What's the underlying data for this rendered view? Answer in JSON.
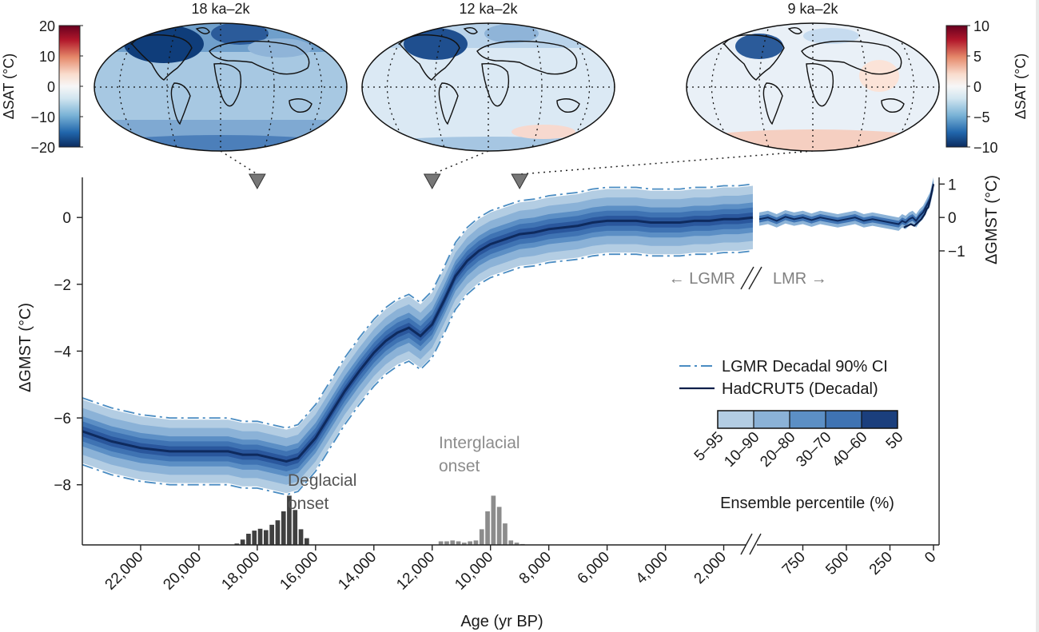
{
  "colors": {
    "band_5_95": "#b3cde3",
    "band_10_90": "#8bb2d7",
    "band_20_80": "#5c8fc5",
    "band_30_70": "#3f73b3",
    "band_40_60": "#2a579d",
    "median": "#0e2a5e",
    "ci_line": "#4a8cc2",
    "hadcrut": "#0b1f4a",
    "deglacial_bars": "#404040",
    "interglacial_bars": "#8c8c8c",
    "triangle": "#777777",
    "label_gray": "#808080"
  },
  "maps": [
    {
      "title": "18 ka–2k",
      "anomaly": "strong-cooling"
    },
    {
      "title": "12 ka–2k",
      "anomaly": "moderate-cooling"
    },
    {
      "title": "9 ka–2k",
      "anomaly": "near-present"
    }
  ],
  "colorbars": {
    "left": {
      "label": "ΔSAT (°C)",
      "ticks": [
        "20",
        "10",
        "0",
        "−10",
        "−20"
      ]
    },
    "right": {
      "label": "ΔSAT (°C)",
      "ticks": [
        "10",
        "5",
        "0",
        "−5",
        "−10"
      ]
    }
  },
  "chart_data": {
    "type": "line",
    "title": "",
    "xlabel": "Age (yr BP)",
    "ylabel": "ΔGMST (°C)",
    "ylabel_right": "ΔGMST (°C)",
    "xlim_lgmr": [
      24000,
      1000
    ],
    "xlim_lmr": [
      1000,
      0
    ],
    "ylim": [
      -9.8,
      1.2
    ],
    "lgmr_x_ticks": [
      "22,000",
      "20,000",
      "18,000",
      "16,000",
      "14,000",
      "12,000",
      "10,000",
      "8,000",
      "6,000",
      "4,000",
      "2,000"
    ],
    "lgmr_x_tick_values": [
      22000,
      20000,
      18000,
      16000,
      14000,
      12000,
      10000,
      8000,
      6000,
      4000,
      2000
    ],
    "lmr_x_ticks": [
      "750",
      "500",
      "250",
      "0"
    ],
    "lmr_x_tick_values": [
      750,
      500,
      250,
      0
    ],
    "y_ticks_left": [
      "0",
      "−2",
      "−4",
      "−6",
      "−8"
    ],
    "y_tick_values_left": [
      0,
      -2,
      -4,
      -6,
      -8
    ],
    "y_ticks_right": [
      "1",
      "0",
      "−1"
    ],
    "y_tick_values_right": [
      1,
      0,
      -1
    ],
    "lgmr_median": {
      "x": [
        24000,
        23000,
        22000,
        21000,
        20000,
        19000,
        18500,
        18000,
        17500,
        17000,
        16600,
        16000,
        15500,
        15000,
        14500,
        14000,
        13600,
        13200,
        12800,
        12400,
        12000,
        11600,
        11200,
        10800,
        10400,
        10000,
        9500,
        9000,
        8500,
        8000,
        7500,
        7000,
        6500,
        6000,
        5500,
        5000,
        4500,
        4000,
        3500,
        3000,
        2500,
        2000,
        1500,
        1000
      ],
      "y": [
        -6.4,
        -6.7,
        -6.9,
        -7.0,
        -7.0,
        -7.0,
        -7.1,
        -7.1,
        -7.2,
        -7.3,
        -7.2,
        -6.6,
        -5.9,
        -5.2,
        -4.6,
        -4.05,
        -3.7,
        -3.45,
        -3.3,
        -3.55,
        -3.2,
        -2.5,
        -1.75,
        -1.3,
        -1.0,
        -0.8,
        -0.65,
        -0.5,
        -0.45,
        -0.35,
        -0.3,
        -0.25,
        -0.15,
        -0.1,
        -0.1,
        -0.1,
        -0.15,
        -0.15,
        -0.15,
        -0.1,
        -0.1,
        -0.05,
        -0.05,
        0.0
      ]
    },
    "band_offsets": {
      "5-95": 0.95,
      "10-90": 0.7,
      "20-80": 0.45,
      "30-70": 0.3,
      "40-60": 0.15
    },
    "ci90_offset": 0.95,
    "lmr_median": {
      "x": [
        1000,
        950,
        900,
        850,
        800,
        750,
        700,
        650,
        600,
        550,
        500,
        450,
        400,
        350,
        300,
        250,
        200,
        180,
        160,
        140,
        120,
        100,
        80,
        60,
        40,
        20,
        0
      ],
      "y": [
        -0.05,
        0.0,
        -0.1,
        0.02,
        -0.05,
        0.0,
        -0.08,
        0.0,
        -0.05,
        -0.1,
        -0.05,
        0.0,
        -0.1,
        -0.05,
        -0.1,
        -0.15,
        -0.2,
        -0.1,
        -0.15,
        -0.05,
        0.0,
        -0.1,
        0.05,
        0.15,
        0.35,
        0.55,
        1.0
      ]
    },
    "lmr_band_offset": 0.2,
    "hadcrut": {
      "x": [
        170,
        150,
        130,
        110,
        90,
        70,
        50,
        40,
        30,
        20,
        10,
        0
      ],
      "y": [
        -0.3,
        -0.25,
        -0.2,
        -0.25,
        -0.15,
        -0.05,
        0.1,
        0.25,
        0.3,
        0.5,
        0.75,
        1.0
      ]
    },
    "histograms": [
      {
        "name": "Deglacial onset",
        "label_line1": "Deglacial",
        "label_line2": "onset",
        "bin_width": 200,
        "x": [
          18700,
          18500,
          18300,
          18100,
          17900,
          17700,
          17500,
          17300,
          17100,
          16900,
          16700,
          16500,
          16300
        ],
        "counts": [
          0.3,
          1.2,
          2.5,
          3.2,
          3.6,
          3.3,
          4.5,
          5.5,
          7.5,
          11.0,
          7.8,
          3.5,
          1.5
        ]
      },
      {
        "name": "Interglacial onset",
        "label_line1": "Interglacial",
        "label_line2": "onset",
        "bin_width": 200,
        "x": [
          11700,
          11500,
          11300,
          11100,
          10900,
          10700,
          10500,
          10300,
          10100,
          9900,
          9700,
          9500,
          9300,
          9100,
          8900
        ],
        "counts": [
          0.8,
          0.8,
          1.0,
          0.8,
          0.5,
          0.8,
          1.0,
          3.5,
          7.5,
          11.0,
          8.5,
          4.8,
          1.0,
          0.5,
          0.2
        ]
      }
    ],
    "map_markers": [
      {
        "x": 18000,
        "map": "18 ka–2k"
      },
      {
        "x": 12000,
        "map": "12 ka–2k"
      },
      {
        "x": 9000,
        "map": "9 ka–2k"
      }
    ],
    "period_labels": {
      "left": "← LGMR",
      "right": "LMR →"
    },
    "legend": {
      "ci_label": "LGMR Decadal 90% CI",
      "hadcrut_label": "HadCRUT5 (Decadal)",
      "percentile_labels": [
        "5–95",
        "10–90",
        "20–80",
        "30–70",
        "40–60",
        "50"
      ],
      "percentile_title": "Ensemble percentile (%)"
    }
  }
}
